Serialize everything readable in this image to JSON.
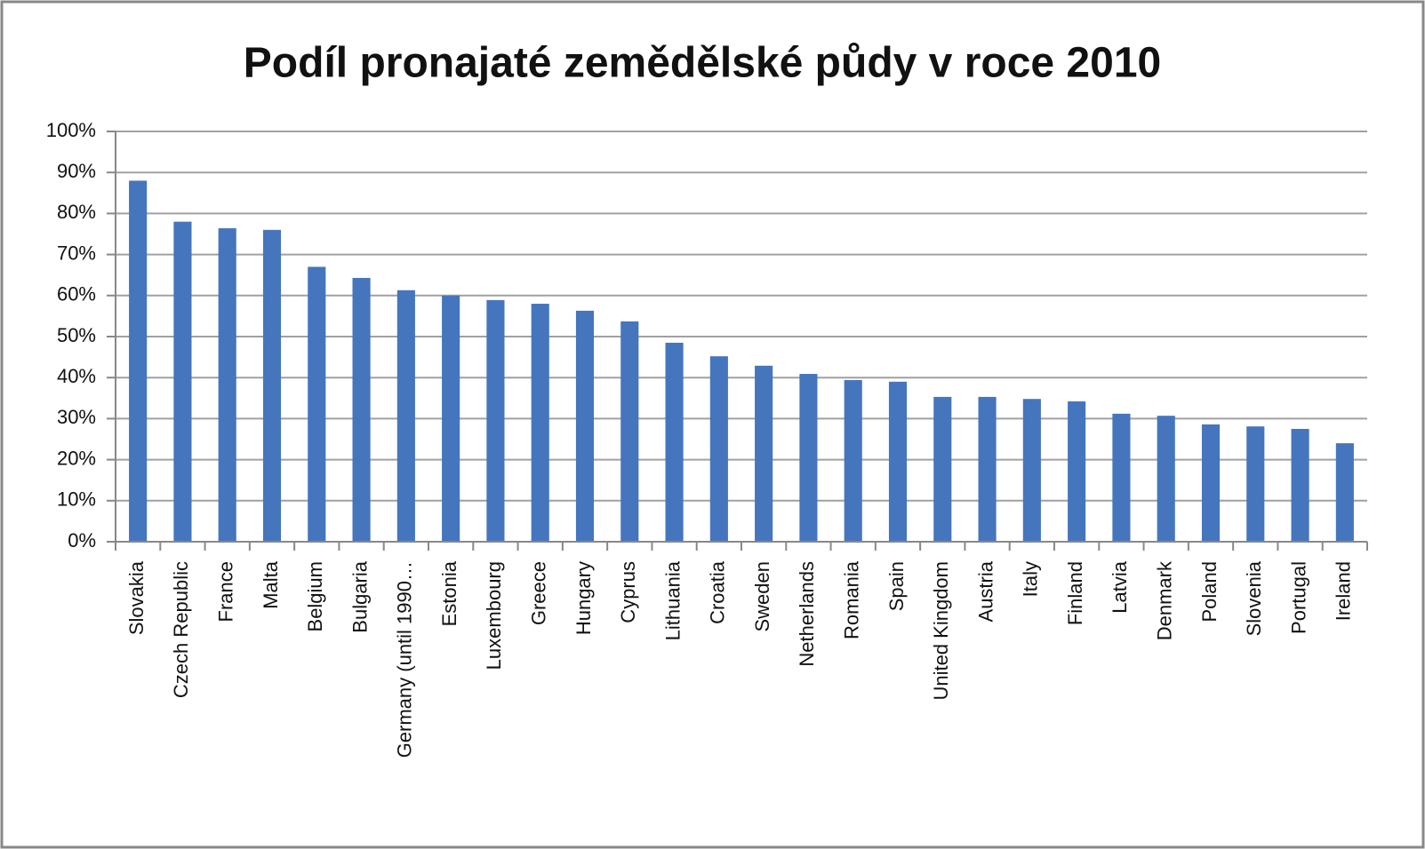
{
  "chart_data": {
    "type": "bar",
    "title": "Podíl pronajaté zemědělské půdy v roce 2010",
    "categories": [
      "Slovakia",
      "Czech Republic",
      "France",
      "Malta",
      "Belgium",
      "Bulgaria",
      "Germany (until 1990…",
      "Estonia",
      "Luxembourg",
      "Greece",
      "Hungary",
      "Cyprus",
      "Lithuania",
      "Croatia",
      "Sweden",
      "Netherlands",
      "Romania",
      "Spain",
      "United Kingdom",
      "Austria",
      "Italy",
      "Finland",
      "Latvia",
      "Denmark",
      "Poland",
      "Slovenia",
      "Portugal",
      "Ireland"
    ],
    "values": [
      88,
      78,
      76.4,
      76,
      67,
      64.3,
      61.3,
      60,
      58.9,
      58,
      56.3,
      53.7,
      48.5,
      45.2,
      42.9,
      40.9,
      39.4,
      39,
      35.3,
      35.3,
      34.8,
      34.2,
      31.2,
      30.7,
      28.6,
      28.1,
      27.5,
      24
    ],
    "color": "#4575bd",
    "ylim": [
      0,
      100
    ],
    "yticks": [
      {
        "value": 0,
        "label": "0%"
      },
      {
        "value": 10,
        "label": "10%"
      },
      {
        "value": 20,
        "label": "20%"
      },
      {
        "value": 30,
        "label": "30%"
      },
      {
        "value": 40,
        "label": "40%"
      },
      {
        "value": 50,
        "label": "50%"
      },
      {
        "value": 60,
        "label": "60%"
      },
      {
        "value": 70,
        "label": "70%"
      },
      {
        "value": 80,
        "label": "80%"
      },
      {
        "value": 90,
        "label": "90%"
      },
      {
        "value": 100,
        "label": "100%"
      }
    ],
    "grid": true
  }
}
